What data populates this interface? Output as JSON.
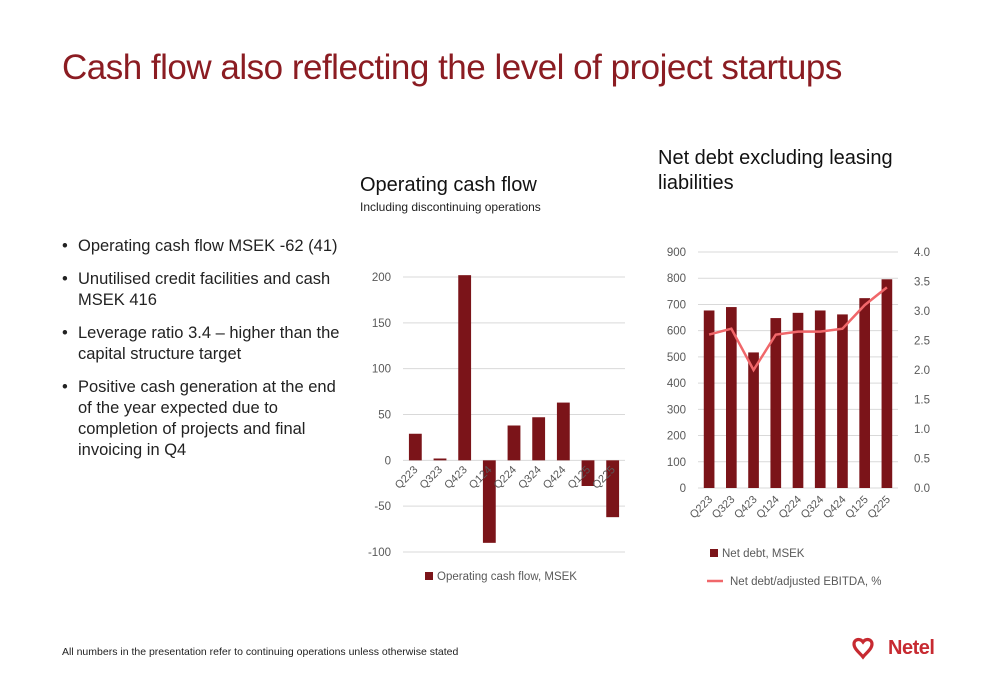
{
  "slide": {
    "title": "Cash flow also reflecting the level of project startups",
    "bullets": [
      "Operating cash flow MSEK -62 (41)",
      "Unutilised credit facilities and cash MSEK 416",
      "Leverage ratio 3.4 – higher than the capital structure target",
      "Positive cash generation at the end of the year expected due to completion of projects and final invoicing in Q4"
    ],
    "footer": "All numbers in the presentation refer to continuing operations unless otherwise stated",
    "logo_text": "Netel"
  },
  "colors": {
    "title": "#8b1c22",
    "bar": "#7b1419",
    "line": "#f0676a",
    "grid": "#d9d9d9",
    "axis_text": "#595959",
    "logo": "#c72a31"
  },
  "chart_data": [
    {
      "type": "bar",
      "title": "Operating cash flow",
      "subtitle": "Including discontinuing operations",
      "categories": [
        "Q223",
        "Q323",
        "Q423",
        "Q124",
        "Q224",
        "Q324",
        "Q424",
        "Q125",
        "Q225"
      ],
      "series": [
        {
          "name": "Operating cash flow, MSEK",
          "values": [
            29,
            2,
            202,
            -90,
            38,
            47,
            63,
            -28,
            -62
          ]
        }
      ],
      "ylim": [
        -100,
        200
      ],
      "yticks": [
        -100,
        -50,
        0,
        50,
        100,
        150,
        200
      ],
      "grid": true,
      "legend": "bottom"
    },
    {
      "type": "bar",
      "title": "Net debt excluding leasing liabilities",
      "categories": [
        "Q223",
        "Q323",
        "Q423",
        "Q124",
        "Q224",
        "Q324",
        "Q424",
        "Q125",
        "Q225"
      ],
      "series": [
        {
          "name": "Net debt, MSEK",
          "type": "bar",
          "axis": "left",
          "values": [
            677,
            690,
            517,
            648,
            668,
            677,
            662,
            724,
            796
          ]
        },
        {
          "name": "Net debt/adjusted EBITDA, %",
          "type": "line",
          "axis": "right",
          "values": [
            2.6,
            2.7,
            2.0,
            2.6,
            2.65,
            2.65,
            2.7,
            3.1,
            3.4
          ]
        }
      ],
      "ylim": [
        0,
        900
      ],
      "yticks": [
        0,
        100,
        200,
        300,
        400,
        500,
        600,
        700,
        800,
        900
      ],
      "y2lim": [
        0,
        4
      ],
      "y2ticks": [
        "0.0",
        "0.5",
        "1.0",
        "1.5",
        "2.0",
        "2.5",
        "3.0",
        "3.5",
        "4.0"
      ],
      "grid": true,
      "legend": "bottom"
    }
  ]
}
